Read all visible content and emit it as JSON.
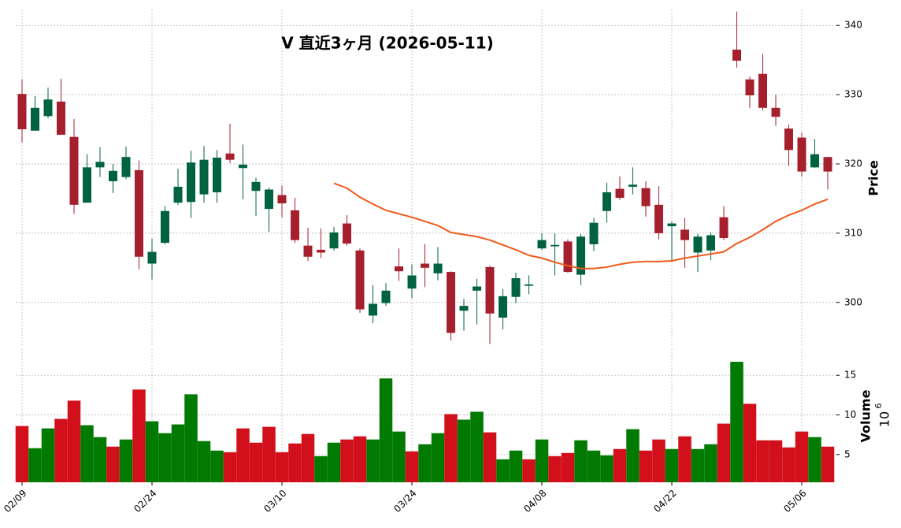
{
  "chart_data": {
    "type": "candlestick",
    "title": "V 直近3ヶ月 (2026-05-11)",
    "x": [
      "02/09",
      "02/10",
      "02/11",
      "02/12",
      "02/13",
      "02/17",
      "02/18",
      "02/19",
      "02/20",
      "02/23",
      "02/24",
      "02/25",
      "02/26",
      "02/27",
      "03/02",
      "03/03",
      "03/04",
      "03/05",
      "03/06",
      "03/09",
      "03/10",
      "03/11",
      "03/12",
      "03/13",
      "03/16",
      "03/17",
      "03/18",
      "03/19",
      "03/20",
      "03/23",
      "03/24",
      "03/25",
      "03/26",
      "03/27",
      "03/30",
      "03/31",
      "04/01",
      "04/02",
      "04/06",
      "04/07",
      "04/08",
      "04/09",
      "04/10",
      "04/13",
      "04/14",
      "04/15",
      "04/16",
      "04/17",
      "04/20",
      "04/21",
      "04/22",
      "04/23",
      "04/24",
      "04/27",
      "04/28",
      "04/29",
      "04/30",
      "05/01",
      "05/04",
      "05/05",
      "05/06",
      "05/07",
      "05/08"
    ],
    "open": [
      330.1,
      324.8,
      326.9,
      329.0,
      323.9,
      314.4,
      319.5,
      317.5,
      318.1,
      319.1,
      305.6,
      308.6,
      314.4,
      314.5,
      315.6,
      315.9,
      321.5,
      319.4,
      316.1,
      313.5,
      315.5,
      313.3,
      308.2,
      307.6,
      307.8,
      311.4,
      307.5,
      298.1,
      299.9,
      305.2,
      302.0,
      305.6,
      304.2,
      304.4,
      298.8,
      301.7,
      305.1,
      297.8,
      300.8,
      302.4,
      307.8,
      308.1,
      308.8,
      304.0,
      308.4,
      313.2,
      316.4,
      316.7,
      316.5,
      314.1,
      311.0,
      310.5,
      307.2,
      307.5,
      312.3,
      336.5,
      332.2,
      333.0,
      328.1,
      325.1,
      323.8,
      319.5,
      321.0
    ],
    "high": [
      332.2,
      329.8,
      331.0,
      332.3,
      326.5,
      321.4,
      322.4,
      320.0,
      322.5,
      320.5,
      309.2,
      313.9,
      319.3,
      321.9,
      322.6,
      322.0,
      325.8,
      322.8,
      318.0,
      316.6,
      316.9,
      315.1,
      310.8,
      310.7,
      310.9,
      312.6,
      307.8,
      302.5,
      302.8,
      307.8,
      305.5,
      308.4,
      308.0,
      304.5,
      300.5,
      303.4,
      305.3,
      301.9,
      304.3,
      303.9,
      310.0,
      310.0,
      309.1,
      309.9,
      312.2,
      317.3,
      318.2,
      319.5,
      317.5,
      316.8,
      311.7,
      312.2,
      309.9,
      310.1,
      313.9,
      342.0,
      332.6,
      335.9,
      330.0,
      325.7,
      324.5,
      323.6,
      321.0
    ],
    "low": [
      323.1,
      324.8,
      326.6,
      324.2,
      312.8,
      314.4,
      318.1,
      315.8,
      317.8,
      304.8,
      303.3,
      308.4,
      314.1,
      312.2,
      314.4,
      314.4,
      320.1,
      314.9,
      312.5,
      310.2,
      312.3,
      308.6,
      306.0,
      306.4,
      307.5,
      308.2,
      298.5,
      297.0,
      299.5,
      303.1,
      300.6,
      302.2,
      303.2,
      294.5,
      295.9,
      296.8,
      294.0,
      296.1,
      299.9,
      301.2,
      307.6,
      303.9,
      304.3,
      302.5,
      307.4,
      311.5,
      314.8,
      315.6,
      312.4,
      309.1,
      305.9,
      305.0,
      304.4,
      306.1,
      309.0,
      333.9,
      328.1,
      327.7,
      325.5,
      319.7,
      318.2,
      319.4,
      316.3
    ],
    "close": [
      325.0,
      328.1,
      329.3,
      324.2,
      314.1,
      319.5,
      320.3,
      319.0,
      321.0,
      306.6,
      307.3,
      313.2,
      316.7,
      320.2,
      320.6,
      320.9,
      320.6,
      319.9,
      317.4,
      316.3,
      314.3,
      309.0,
      306.6,
      307.2,
      310.1,
      308.5,
      299.0,
      299.8,
      301.7,
      304.5,
      303.9,
      305.0,
      305.6,
      295.6,
      299.5,
      302.3,
      298.4,
      300.9,
      303.5,
      302.6,
      309.0,
      308.3,
      304.4,
      309.5,
      311.5,
      315.9,
      315.1,
      317.0,
      313.9,
      310.0,
      311.4,
      309.0,
      309.5,
      309.7,
      309.3,
      334.9,
      329.9,
      328.1,
      326.8,
      322.0,
      318.9,
      321.4,
      318.9
    ],
    "up_color": "#006340",
    "down_color": "#a51f2d",
    "ma": {
      "color": "#f05a1a",
      "values": [
        null,
        null,
        null,
        null,
        null,
        null,
        null,
        null,
        null,
        null,
        null,
        null,
        null,
        null,
        null,
        null,
        null,
        null,
        null,
        null,
        null,
        null,
        null,
        null,
        317.2,
        316.5,
        315.2,
        314.2,
        313.3,
        312.8,
        312.3,
        311.7,
        311.1,
        310.1,
        309.8,
        309.5,
        309.0,
        308.3,
        307.6,
        306.8,
        306.4,
        305.8,
        305.3,
        304.9,
        304.9,
        305.1,
        305.5,
        305.8,
        305.9,
        305.9,
        306.0,
        306.4,
        306.7,
        307.0,
        307.3,
        308.5,
        309.4,
        310.5,
        311.7,
        312.6,
        313.3,
        314.2,
        314.9
      ]
    },
    "ylabel": "Price",
    "ylim": [
      293.6,
      342.3
    ],
    "yticks": [
      300,
      310,
      320,
      330,
      340
    ],
    "grid": true,
    "xticks": [
      "02/09",
      "02/24",
      "03/10",
      "03/24",
      "04/08",
      "04/22",
      "05/06"
    ],
    "volume": {
      "ylabel": "Volume",
      "scale_base": "10",
      "scale_exponent": "6",
      "values": [
        8.6,
        5.8,
        8.3,
        9.5,
        11.8,
        8.7,
        7.2,
        6.0,
        6.9,
        13.2,
        9.2,
        7.7,
        8.8,
        12.6,
        6.7,
        5.5,
        5.3,
        8.3,
        6.5,
        8.5,
        5.3,
        6.4,
        7.6,
        4.8,
        6.5,
        6.9,
        7.3,
        6.9,
        14.6,
        7.9,
        5.4,
        6.3,
        7.7,
        10.1,
        9.4,
        10.4,
        7.8,
        4.4,
        5.5,
        4.4,
        6.9,
        4.8,
        5.2,
        6.8,
        5.5,
        4.9,
        5.7,
        8.2,
        5.5,
        6.9,
        5.7,
        7.3,
        5.7,
        6.3,
        8.9,
        16.7,
        11.4,
        6.8,
        6.8,
        5.9,
        7.9,
        7.2,
        6.0
      ],
      "up_color": "#007a00",
      "down_color": "#d2101b",
      "ylim": [
        1.5,
        18.3
      ],
      "yticks": [
        5,
        10,
        15
      ]
    }
  }
}
